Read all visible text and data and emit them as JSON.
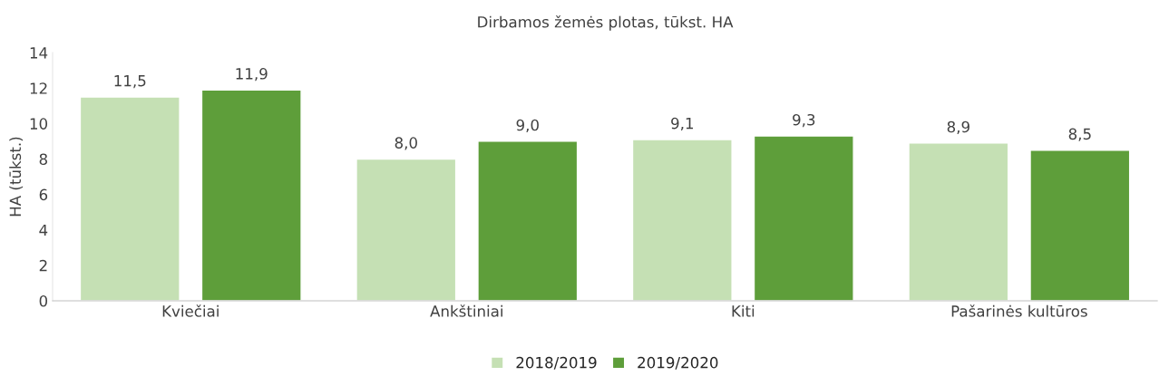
{
  "chart_data": {
    "type": "bar",
    "title": "Dirbamos žemės plotas, tūkst. HA",
    "ylabel": "HA (tūkst.)",
    "categories": [
      "Kviečiai",
      "Ankštiniai",
      "Kiti",
      "Pašarinės kultūros"
    ],
    "series": [
      {
        "name": "2018/2019",
        "color": "#c5e0b4",
        "values": [
          11.5,
          8.0,
          9.1,
          8.9
        ],
        "value_labels": [
          "11,5",
          "8,0",
          "9,1",
          "8,9"
        ]
      },
      {
        "name": "2019/2020",
        "color": "#5e9e3a",
        "values": [
          11.9,
          9.0,
          9.3,
          8.5
        ],
        "value_labels": [
          "11,9",
          "9,0",
          "9,3",
          "8,5"
        ]
      }
    ],
    "ylim": [
      0,
      14
    ],
    "yticks": [
      0,
      2,
      4,
      6,
      8,
      10,
      12,
      14
    ],
    "grid": false,
    "legend": "bottom"
  }
}
